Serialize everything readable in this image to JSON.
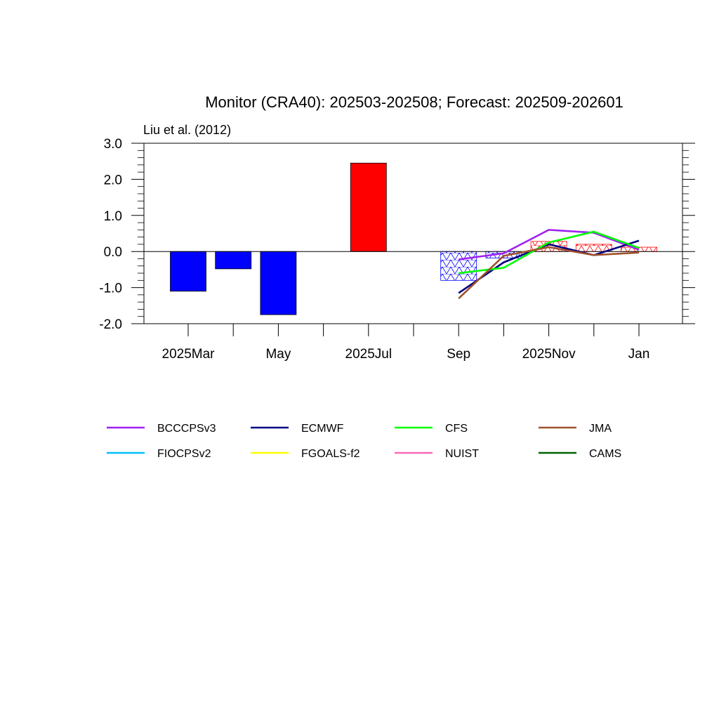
{
  "chart_data": {
    "type": "bar",
    "title": "Monitor (CRA40): 202503-202508; Forecast: 202509-202601",
    "subtitle": "Liu et al. (2012)",
    "ylim": [
      -2.0,
      3.0
    ],
    "y_ticks": [
      "3.0",
      "2.0",
      "1.0",
      "0.0",
      "-1.0",
      "-2.0"
    ],
    "y_tick_values": [
      3.0,
      2.0,
      1.0,
      0.0,
      -1.0,
      -2.0
    ],
    "months": [
      "2025Mar",
      "2025Apr",
      "2025May",
      "2025Jun",
      "2025Jul",
      "2025Aug",
      "2025Sep",
      "2025Oct",
      "2025Nov",
      "2025Dec",
      "2026Jan"
    ],
    "x_tick_labels": [
      "2025Mar",
      "",
      "May",
      "",
      "2025Jul",
      "",
      "Sep",
      "",
      "2025Nov",
      "",
      "Jan"
    ],
    "grid": false,
    "legend_placement": "bottom",
    "observed_bars": [
      {
        "month": "2025Mar",
        "value": -1.1,
        "color": "#0000ff"
      },
      {
        "month": "2025Apr",
        "value": -0.48,
        "color": "#0000ff"
      },
      {
        "month": "2025May",
        "value": -1.75,
        "color": "#0000ff"
      },
      {
        "month": "2025Jun",
        "value": 0.0,
        "color": "#0000ff"
      },
      {
        "month": "2025Jul",
        "value": 2.45,
        "color": "#ff0000"
      },
      {
        "month": "2025Aug",
        "value": 0.0,
        "color": "#ff0000"
      }
    ],
    "forecast_bars": [
      {
        "month": "2025Sep",
        "value": -0.8,
        "hatch_color": "#0000ff"
      },
      {
        "month": "2025Oct",
        "value": -0.18,
        "hatch_color": "#0000ff"
      },
      {
        "month": "2025Nov",
        "value": 0.28,
        "hatch_color": "#ff0000"
      },
      {
        "month": "2025Dec",
        "value": 0.2,
        "hatch_color": "#ff0000"
      },
      {
        "month": "2026Jan",
        "value": 0.12,
        "hatch_color": "#ff0000"
      }
    ],
    "series": [
      {
        "name": "BCCCPSv3",
        "color": "#a020f0",
        "x": [
          "2025Sep",
          "2025Oct",
          "2025Nov",
          "2025Dec",
          "2026Jan"
        ],
        "values": [
          -0.22,
          -0.05,
          0.6,
          0.52,
          0.05
        ]
      },
      {
        "name": "ECMWF",
        "color": "#000080",
        "x": [
          "2025Sep",
          "2025Oct",
          "2025Nov",
          "2025Dec",
          "2026Jan"
        ],
        "values": [
          -1.15,
          -0.3,
          0.2,
          -0.1,
          0.3
        ]
      },
      {
        "name": "CFS",
        "color": "#00ff00",
        "x": [
          "2025Sep",
          "2025Oct",
          "2025Nov",
          "2025Dec",
          "2026Jan"
        ],
        "values": [
          -0.6,
          -0.45,
          0.25,
          0.55,
          0.1
        ]
      },
      {
        "name": "JMA",
        "color": "#a0522d",
        "x": [
          "2025Sep",
          "2025Oct",
          "2025Nov",
          "2025Dec",
          "2026Jan"
        ],
        "values": [
          -1.3,
          -0.12,
          0.12,
          -0.1,
          -0.03
        ]
      },
      {
        "name": "FIOCPSv2",
        "color": "#00bfff",
        "x": [],
        "values": []
      },
      {
        "name": "FGOALS-f2",
        "color": "#ffff00",
        "x": [],
        "values": []
      },
      {
        "name": "NUIST",
        "color": "#ff69b4",
        "x": [],
        "values": []
      },
      {
        "name": "CAMS",
        "color": "#006400",
        "x": [],
        "values": []
      }
    ]
  }
}
